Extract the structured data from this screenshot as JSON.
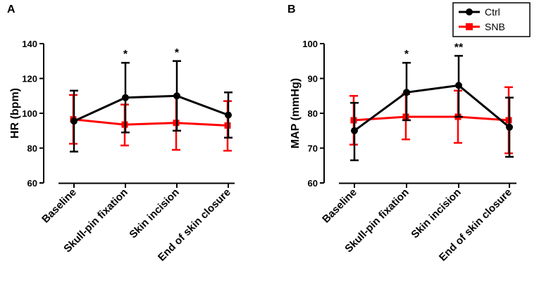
{
  "legend": {
    "entries": [
      {
        "name": "Ctrl",
        "color": "#000000",
        "marker": "circle"
      },
      {
        "name": "SNB",
        "color": "#ff0000",
        "marker": "square"
      }
    ]
  },
  "chart_data": [
    {
      "type": "line",
      "panel_label": "A",
      "title": "",
      "xlabel": "",
      "ylabel": "HR (bpm)",
      "ylim": [
        60,
        140
      ],
      "yticks": [
        "60",
        "80",
        "100",
        "120",
        "140"
      ],
      "categories": [
        "Baseline",
        "Skull-pin fixation",
        "Skin incision",
        "End of skin closure"
      ],
      "series": [
        {
          "name": "Ctrl",
          "color": "#000000",
          "values": [
            95.5,
            109,
            110,
            99
          ],
          "err_low": [
            78,
            89,
            90,
            86
          ],
          "err_high": [
            113,
            129,
            130,
            112
          ]
        },
        {
          "name": "SNB",
          "color": "#ff0000",
          "values": [
            96.5,
            93.5,
            94.5,
            93
          ],
          "err_low": [
            82.5,
            81.5,
            79,
            78.5
          ],
          "err_high": [
            110.5,
            105,
            110,
            107
          ]
        }
      ],
      "annotations": [
        {
          "category": "Skull-pin fixation",
          "text": "*"
        },
        {
          "category": "Skin incision",
          "text": "*"
        }
      ]
    },
    {
      "type": "line",
      "panel_label": "B",
      "title": "",
      "xlabel": "",
      "ylabel": "MAP (mmHg)",
      "ylim": [
        60,
        100
      ],
      "yticks": [
        "60",
        "70",
        "80",
        "90",
        "100"
      ],
      "categories": [
        "Baseline",
        "Skull-pin fixation",
        "Skin incision",
        "End of skin closure"
      ],
      "series": [
        {
          "name": "Ctrl",
          "color": "#000000",
          "values": [
            75,
            86,
            88,
            76
          ],
          "err_low": [
            66.5,
            78,
            79,
            67.5
          ],
          "err_high": [
            83,
            94.5,
            96.5,
            84.5
          ]
        },
        {
          "name": "SNB",
          "color": "#ff0000",
          "values": [
            78,
            79,
            79,
            78
          ],
          "err_low": [
            71,
            72.5,
            71.5,
            68.5
          ],
          "err_high": [
            85,
            85.5,
            86.5,
            87.5
          ]
        }
      ],
      "annotations": [
        {
          "category": "Skull-pin fixation",
          "text": "*"
        },
        {
          "category": "Skin incision",
          "text": "**"
        }
      ]
    }
  ]
}
